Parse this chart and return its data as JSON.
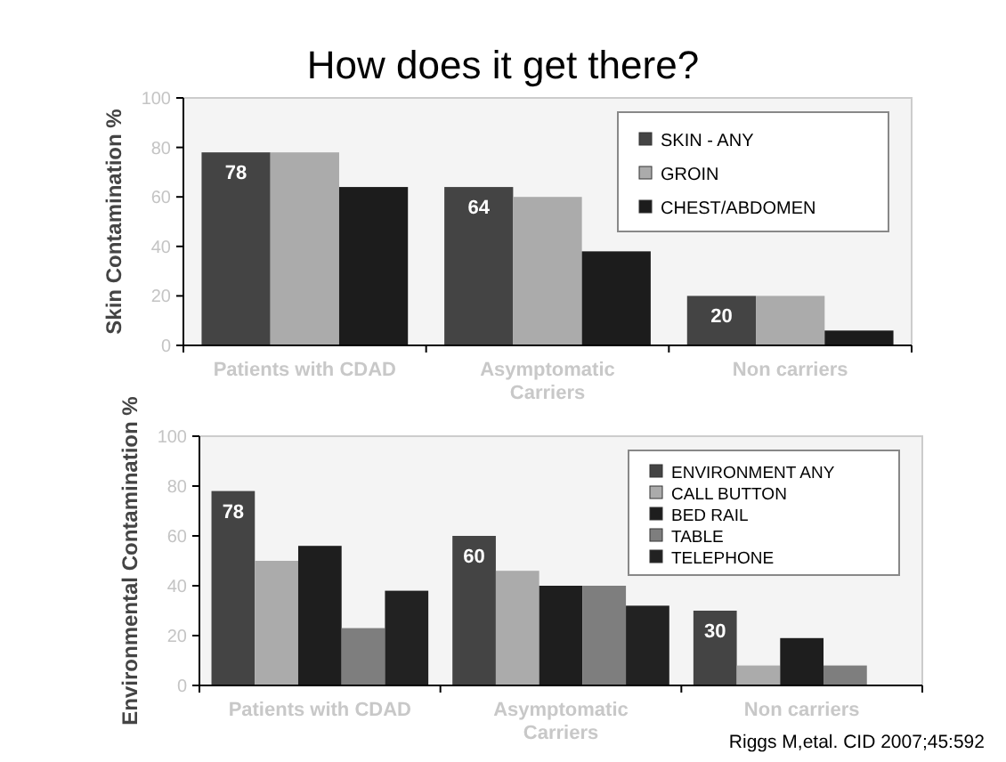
{
  "chart_data": [
    {
      "type": "bar",
      "title": "How does it get there?",
      "ylabel": "Skin Contamination %",
      "categories": [
        "Patients with CDAD",
        "Asymptomatic Carriers",
        "Non carriers"
      ],
      "ylim": [
        0,
        100
      ],
      "yticks": [
        0,
        20,
        40,
        60,
        80,
        100
      ],
      "legend": "top right",
      "series": [
        {
          "name": "SKIN - ANY",
          "color": "#444444",
          "values": [
            78,
            64,
            20
          ],
          "value_labels": [
            "78",
            "64",
            "20"
          ]
        },
        {
          "name": "GROIN",
          "color": "#ababab",
          "values": [
            78,
            60,
            20
          ]
        },
        {
          "name": "CHEST/ABDOMEN",
          "color": "#1c1c1c",
          "values": [
            64,
            38,
            6
          ]
        }
      ]
    },
    {
      "type": "bar",
      "ylabel": "Environmental Contamination %",
      "categories": [
        "Patients with CDAD",
        "Asymptomatic Carriers",
        "Non carriers"
      ],
      "ylim": [
        0,
        100
      ],
      "yticks": [
        0,
        20,
        40,
        60,
        80,
        100
      ],
      "legend": "top right",
      "annotations": [
        "Riggs M,etal. CID 2007;45:592"
      ],
      "series": [
        {
          "name": "ENVIRONMENT ANY",
          "color": "#444444",
          "values": [
            78,
            60,
            30
          ],
          "value_labels": [
            "78",
            "60",
            "30"
          ]
        },
        {
          "name": "CALL BUTTON",
          "color": "#ababab",
          "values": [
            50,
            46,
            8
          ]
        },
        {
          "name": "BED RAIL",
          "color": "#1e1e1e",
          "values": [
            56,
            40,
            19
          ]
        },
        {
          "name": "TABLE",
          "color": "#7e7e7e",
          "values": [
            23,
            40,
            8
          ]
        },
        {
          "name": "TELEPHONE",
          "color": "#222222",
          "values": [
            38,
            32,
            null
          ]
        }
      ]
    }
  ]
}
